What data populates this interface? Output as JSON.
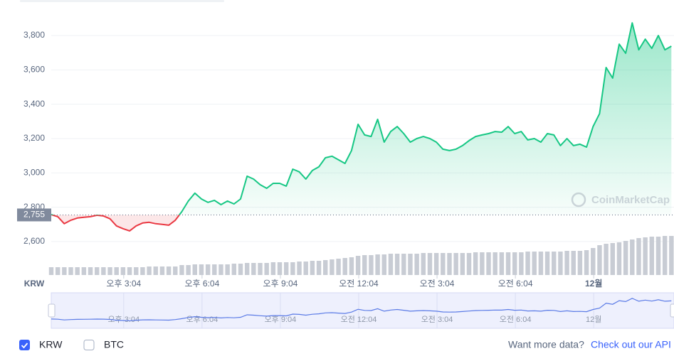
{
  "chart_data": {
    "type": "line",
    "x": [
      0,
      1,
      2,
      3,
      4,
      5,
      6,
      7,
      8,
      9,
      10,
      11,
      12,
      13,
      14,
      15,
      16,
      17,
      18,
      19,
      20,
      21,
      22,
      23,
      24,
      25,
      26,
      27,
      28,
      29,
      30,
      31,
      32,
      33,
      34,
      35,
      36,
      37,
      38,
      39,
      40,
      41,
      42,
      43,
      44,
      45,
      46,
      47,
      48,
      49,
      50,
      51,
      52,
      53,
      54,
      55,
      56,
      57,
      58,
      59,
      60,
      61,
      62,
      63,
      64,
      65,
      66,
      67,
      68,
      69,
      70,
      71,
      72,
      73,
      74,
      75,
      76,
      77,
      78,
      79,
      80,
      81,
      82,
      83,
      84,
      85,
      86,
      87,
      88,
      89,
      90,
      91,
      92,
      93,
      94,
      95
    ],
    "values": [
      2757,
      2745,
      2704,
      2724,
      2737,
      2741,
      2745,
      2753,
      2749,
      2733,
      2691,
      2675,
      2662,
      2691,
      2708,
      2712,
      2704,
      2700,
      2695,
      2724,
      2774,
      2836,
      2882,
      2848,
      2828,
      2840,
      2815,
      2836,
      2819,
      2848,
      2981,
      2964,
      2931,
      2910,
      2939,
      2939,
      2923,
      3022,
      3006,
      2964,
      3014,
      3035,
      3088,
      3097,
      3076,
      3055,
      3130,
      3283,
      3221,
      3212,
      3312,
      3179,
      3241,
      3270,
      3229,
      3179,
      3200,
      3212,
      3200,
      3179,
      3138,
      3130,
      3138,
      3159,
      3188,
      3212,
      3221,
      3229,
      3241,
      3237,
      3270,
      3229,
      3241,
      3192,
      3200,
      3179,
      3229,
      3221,
      3159,
      3200,
      3159,
      3167,
      3150,
      3270,
      3345,
      3614,
      3552,
      3750,
      3697,
      3874,
      3717,
      3779,
      3725,
      3800,
      3717,
      3738
    ],
    "volume": [
      11,
      11,
      11,
      11,
      11,
      11,
      11,
      11,
      11,
      11,
      11,
      11,
      11,
      11,
      11,
      12,
      12,
      12,
      12,
      12,
      14,
      14,
      15,
      15,
      15,
      15,
      15,
      15,
      16,
      16,
      17,
      17,
      17,
      17,
      18,
      18,
      18,
      18,
      19,
      19,
      20,
      20,
      21,
      22,
      23,
      24,
      25,
      27,
      28,
      28,
      29,
      29,
      30,
      30,
      30,
      30,
      30,
      31,
      31,
      31,
      31,
      31,
      31,
      31,
      31,
      32,
      32,
      32,
      32,
      32,
      32,
      32,
      32,
      33,
      33,
      33,
      33,
      33,
      33,
      34,
      34,
      34,
      35,
      38,
      42,
      44,
      45,
      46,
      48,
      50,
      52,
      53,
      54,
      54,
      55,
      55
    ],
    "up_color": "#16c784",
    "down_color": "#ea3943",
    "volume_color": "#c8ccd4",
    "reference": {
      "value": 2755,
      "label": "2,755"
    },
    "xlim": [
      0,
      95.4
    ],
    "ylim": [
      2405,
      3945
    ],
    "y2lim": [
      0,
      100
    ],
    "xticks": [
      {
        "value": 11.1,
        "label": "오후 3:04"
      },
      {
        "value": 23.1,
        "label": "오후 6:04"
      },
      {
        "value": 35.1,
        "label": "오후 9:04"
      },
      {
        "value": 47.1,
        "label": "오전 12:04"
      },
      {
        "value": 59.1,
        "label": "오전 3:04"
      },
      {
        "value": 71.1,
        "label": "오전 6:04"
      },
      {
        "value": 83.1,
        "label": "12월"
      }
    ],
    "yticks": [
      {
        "value": 2600,
        "label": "2,600"
      },
      {
        "value": 2800,
        "label": "2,800"
      },
      {
        "value": 3000,
        "label": "3,000"
      },
      {
        "value": 3200,
        "label": "3,200"
      },
      {
        "value": 3400,
        "label": "3,400"
      },
      {
        "value": 3600,
        "label": "3,600"
      },
      {
        "value": 3800,
        "label": "3,800"
      }
    ],
    "grid": true,
    "x_axis_label": "KRW",
    "watermark": "CoinMarketCap",
    "toggles": [
      {
        "label": "KRW",
        "checked": true
      },
      {
        "label": "BTC",
        "checked": false
      }
    ],
    "footer": {
      "prompt": "Want more data?",
      "link": "Check out our API"
    }
  }
}
